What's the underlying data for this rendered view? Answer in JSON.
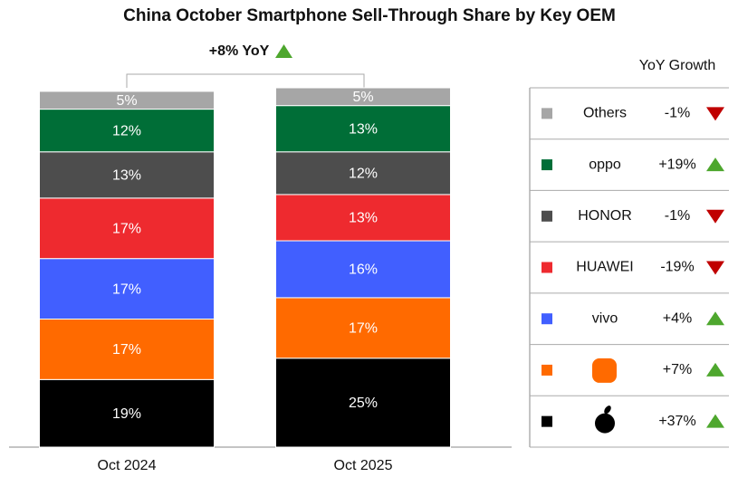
{
  "chart_data": {
    "type": "stacked-bar",
    "title": "China October Smartphone Sell-Through Share by Key OEM",
    "annotation": "+8% YoY",
    "legend_title": "YoY Growth",
    "categories": [
      "Oct 2024",
      "Oct 2025"
    ],
    "series": [
      {
        "name": null,
        "color": "#000000",
        "values": [
          19,
          25
        ],
        "value_labels": [
          "19%",
          "25%"
        ],
        "yoy": {
          "value": 37,
          "label": "+37%"
        }
      },
      {
        "name": null,
        "color": "#ff6a00",
        "values": [
          17,
          17
        ],
        "value_labels": [
          "17%",
          "17%"
        ],
        "yoy": {
          "value": 7,
          "label": "+7%"
        }
      },
      {
        "name": "vivo",
        "color": "#415fff",
        "values": [
          17,
          16
        ],
        "value_labels": [
          "17%",
          "16%"
        ],
        "yoy": {
          "value": 4,
          "label": "+4%"
        }
      },
      {
        "name": "HUAWEI",
        "color": "#ee2a2f",
        "values": [
          17,
          13
        ],
        "value_labels": [
          "17%",
          "13%"
        ],
        "yoy": {
          "value": -19,
          "label": "-19%"
        }
      },
      {
        "name": "HONOR",
        "color": "#4d4d4d",
        "values": [
          13,
          12
        ],
        "value_labels": [
          "13%",
          "12%"
        ],
        "yoy": {
          "value": -1,
          "label": "-1%"
        }
      },
      {
        "name": "oppo",
        "color": "#006e37",
        "values": [
          12,
          13
        ],
        "value_labels": [
          "12%",
          "13%"
        ],
        "yoy": {
          "value": 19,
          "label": "+19%"
        }
      },
      {
        "name": "Others",
        "color": "#a6a6a6",
        "values": [
          5,
          5
        ],
        "value_labels": [
          "5%",
          "5%"
        ],
        "yoy": {
          "value": -1,
          "label": "-1%"
        }
      }
    ],
    "legend": "right"
  }
}
